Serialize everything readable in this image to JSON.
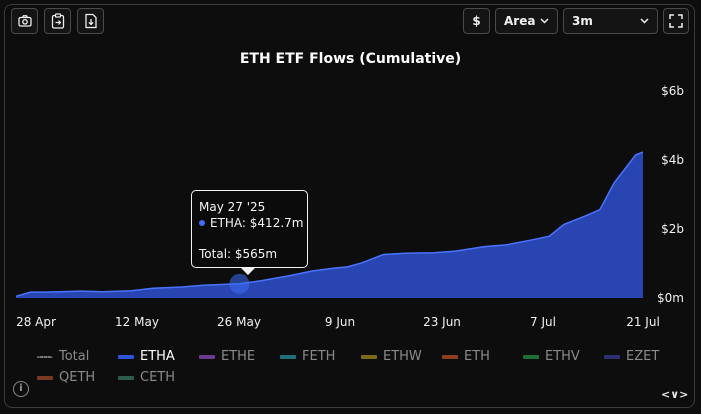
{
  "toolbar": {
    "currency_label": "$",
    "chart_type_value": "Area",
    "range_value": "3m"
  },
  "tooltip": {
    "date": "May 27 '25",
    "series_line": "ETHA: $412.7m",
    "total_line": "Total: $565m"
  },
  "legend": [
    {
      "label": "Total",
      "color": "#777777",
      "active": false,
      "style": "dotted"
    },
    {
      "label": "ETHA",
      "color": "#2f52d6",
      "active": true,
      "style": "solid"
    },
    {
      "label": "ETHE",
      "color": "#6b3a8c",
      "active": false,
      "style": "solid"
    },
    {
      "label": "FETH",
      "color": "#1f6e78",
      "active": false,
      "style": "solid"
    },
    {
      "label": "ETHW",
      "color": "#7a6a1a",
      "active": false,
      "style": "solid"
    },
    {
      "label": "ETH",
      "color": "#8a3f1f",
      "active": false,
      "style": "solid"
    },
    {
      "label": "ETHV",
      "color": "#1f6e3a",
      "active": false,
      "style": "solid"
    },
    {
      "label": "EZET",
      "color": "#2e2f73",
      "active": false,
      "style": "solid"
    },
    {
      "label": "QETH",
      "color": "#7a3a22",
      "active": false,
      "style": "solid"
    },
    {
      "label": "CETH",
      "color": "#2e5e4a",
      "active": false,
      "style": "solid"
    }
  ],
  "nav": "<∨>",
  "chart_data": {
    "type": "area",
    "title": "ETH ETF Flows (Cumulative)",
    "xlabel": "",
    "ylabel": "",
    "x_tick_labels": [
      "28 Apr",
      "12 May",
      "26 May",
      "9 Jun",
      "23 Jun",
      "7 Jul",
      "21 Jul"
    ],
    "y_tick_labels": [
      "$0m",
      "$2b",
      "$4b",
      "$6b"
    ],
    "y_ticks": [
      0,
      2000,
      4000,
      6000
    ],
    "ylim": [
      0,
      6000
    ],
    "x_range": [
      "2025-04-26",
      "2025-07-22"
    ],
    "grid": false,
    "legend_position": "bottom",
    "series": [
      {
        "name": "ETHA",
        "color": "#2f52d6",
        "x": [
          "2025-04-26",
          "2025-04-28",
          "2025-04-30",
          "2025-05-02",
          "2025-05-05",
          "2025-05-08",
          "2025-05-12",
          "2025-05-15",
          "2025-05-19",
          "2025-05-22",
          "2025-05-27",
          "2025-05-30",
          "2025-06-03",
          "2025-06-06",
          "2025-06-09",
          "2025-06-11",
          "2025-06-13",
          "2025-06-16",
          "2025-06-19",
          "2025-06-23",
          "2025-06-26",
          "2025-06-30",
          "2025-07-03",
          "2025-07-07",
          "2025-07-09",
          "2025-07-11",
          "2025-07-14",
          "2025-07-16",
          "2025-07-18",
          "2025-07-21",
          "2025-07-22"
        ],
        "values": [
          50,
          170,
          170,
          180,
          200,
          180,
          210,
          280,
          320,
          370,
          413,
          500,
          650,
          780,
          860,
          900,
          1020,
          1260,
          1300,
          1310,
          1360,
          1490,
          1540,
          1700,
          1790,
          2130,
          2380,
          2560,
          3340,
          4150,
          4230
        ]
      }
    ]
  }
}
